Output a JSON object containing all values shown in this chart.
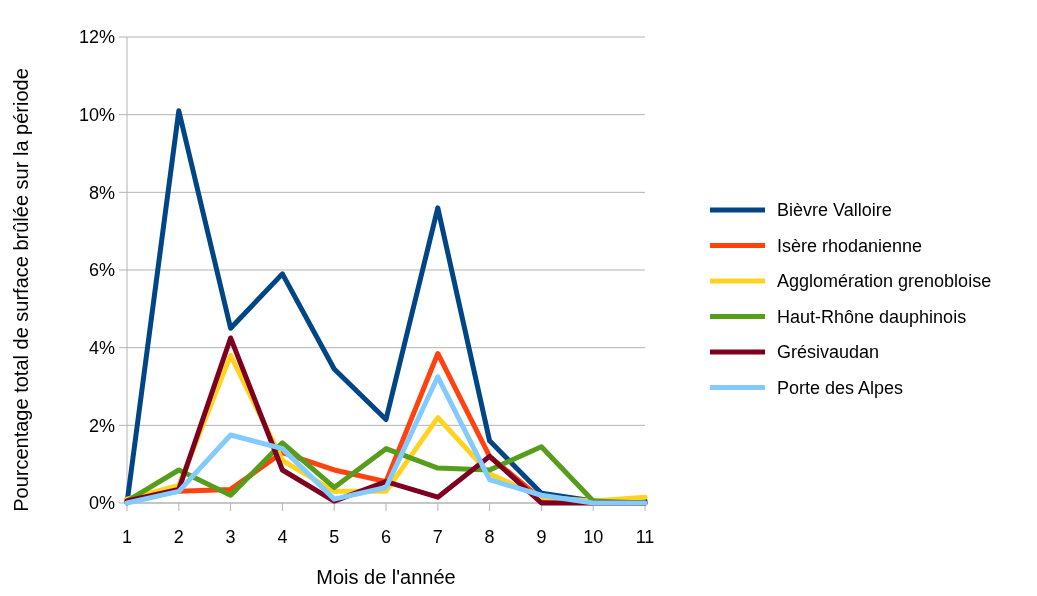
{
  "chart_data": {
    "type": "line",
    "xlabel": "Mois de l'année",
    "ylabel": "Pourcentage total de surface brûlée sur la période",
    "x": [
      1,
      2,
      3,
      4,
      5,
      6,
      7,
      8,
      9,
      10,
      11
    ],
    "xlim": [
      1,
      11
    ],
    "xticks": [
      1,
      2,
      3,
      4,
      5,
      6,
      7,
      8,
      9,
      10,
      11
    ],
    "ylim": [
      0,
      12
    ],
    "yticks": [
      {
        "value": 0,
        "label": "0%"
      },
      {
        "value": 2,
        "label": "2%"
      },
      {
        "value": 4,
        "label": "4%"
      },
      {
        "value": 6,
        "label": "6%"
      },
      {
        "value": 8,
        "label": "8%"
      },
      {
        "value": 10,
        "label": "10%"
      },
      {
        "value": 12,
        "label": "12%"
      }
    ],
    "grid": "y",
    "legend": "right",
    "marker": "none",
    "series": [
      {
        "name": "Bièvre Valloire",
        "color": "#004586",
        "values": [
          0,
          10.1,
          4.5,
          5.9,
          3.45,
          2.15,
          7.6,
          1.6,
          0.25,
          0.05,
          0.05
        ]
      },
      {
        "name": "Isère rhodanienne",
        "color": "#ff420e",
        "values": [
          0.1,
          0.3,
          0.35,
          1.3,
          0.85,
          0.55,
          3.85,
          1.2,
          0.1,
          0,
          0
        ]
      },
      {
        "name": "Agglomération grenobloise",
        "color": "#ffd320",
        "values": [
          0.1,
          0.45,
          3.8,
          1.1,
          0.3,
          0.3,
          2.2,
          0.75,
          0.15,
          0.05,
          0.15
        ]
      },
      {
        "name": "Haut-Rhône dauphinois",
        "color": "#579d1c",
        "values": [
          0.05,
          0.85,
          0.2,
          1.55,
          0.4,
          1.4,
          0.9,
          0.85,
          1.45,
          0.05,
          0
        ]
      },
      {
        "name": "Grésivaudan",
        "color": "#7e0021",
        "values": [
          0.05,
          0.35,
          4.25,
          0.85,
          0.05,
          0.55,
          0.15,
          1.2,
          0,
          0,
          0
        ]
      },
      {
        "name": "Porte des Alpes",
        "color": "#83caff",
        "values": [
          0,
          0.3,
          1.75,
          1.4,
          0.1,
          0.4,
          3.25,
          0.6,
          0.2,
          0,
          0
        ]
      }
    ]
  }
}
